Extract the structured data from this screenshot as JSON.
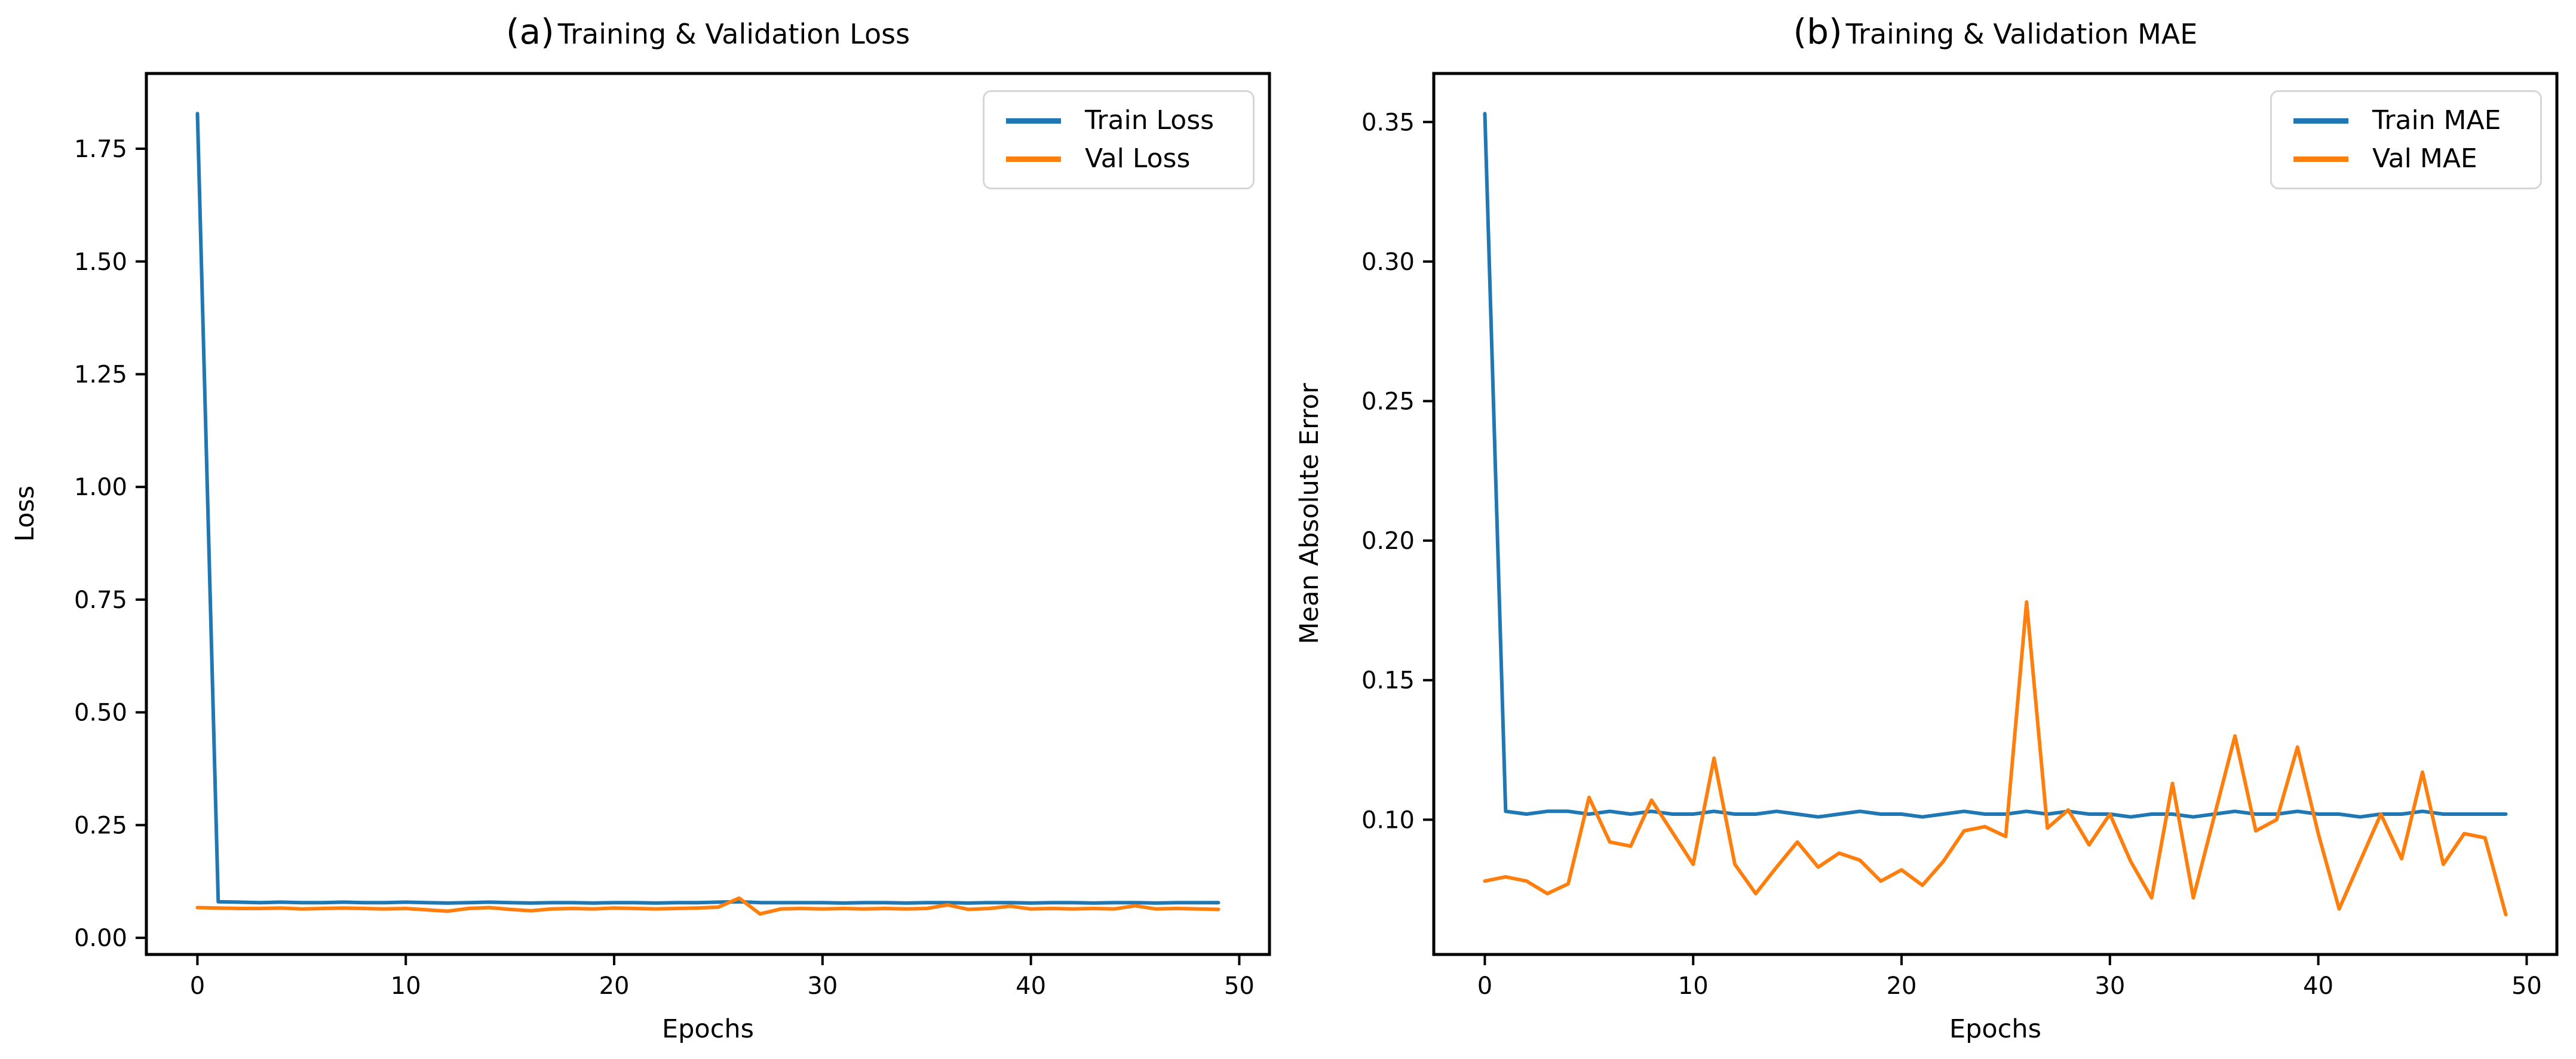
{
  "colors": {
    "train_line": "#1f77b4",
    "val_line": "#ff7f0e",
    "axis": "#000000",
    "legend_border": "#d6d6d6",
    "background": "#ffffff"
  },
  "chart_data": [
    {
      "type": "line",
      "panel": "a",
      "title_prefix": "(a)",
      "title": "Training & Validation Loss",
      "xlabel": "Epochs",
      "ylabel": "Loss",
      "grid": false,
      "xlim": [
        -2.45,
        51.45
      ],
      "ylim": [
        -0.037,
        1.917
      ],
      "xticks": {
        "values": [
          0,
          10,
          20,
          30,
          40,
          50
        ],
        "labels": [
          "0",
          "10",
          "20",
          "30",
          "40",
          "50"
        ]
      },
      "yticks": {
        "values": [
          0.0,
          0.25,
          0.5,
          0.75,
          1.0,
          1.25,
          1.5,
          1.75
        ],
        "labels": [
          "0.00",
          "0.25",
          "0.50",
          "0.75",
          "1.00",
          "1.25",
          "1.50",
          "1.75"
        ]
      },
      "legend": {
        "position": "upper right",
        "entries": [
          "Train Loss",
          "Val Loss"
        ]
      },
      "x": [
        0,
        1,
        2,
        3,
        4,
        5,
        6,
        7,
        8,
        9,
        10,
        11,
        12,
        13,
        14,
        15,
        16,
        17,
        18,
        19,
        20,
        21,
        22,
        23,
        24,
        25,
        26,
        27,
        28,
        29,
        30,
        31,
        32,
        33,
        34,
        35,
        36,
        37,
        38,
        39,
        40,
        41,
        42,
        43,
        44,
        45,
        46,
        47,
        48,
        49
      ],
      "series": [
        {
          "name": "Train Loss",
          "color": "#1f77b4",
          "values": [
            1.828,
            0.08,
            0.079,
            0.078,
            0.079,
            0.078,
            0.078,
            0.079,
            0.078,
            0.078,
            0.079,
            0.078,
            0.077,
            0.078,
            0.079,
            0.078,
            0.077,
            0.078,
            0.078,
            0.077,
            0.078,
            0.078,
            0.077,
            0.078,
            0.078,
            0.079,
            0.08,
            0.078,
            0.078,
            0.078,
            0.078,
            0.077,
            0.078,
            0.078,
            0.077,
            0.078,
            0.078,
            0.077,
            0.078,
            0.078,
            0.077,
            0.078,
            0.078,
            0.077,
            0.078,
            0.078,
            0.077,
            0.078,
            0.078,
            0.078
          ]
        },
        {
          "name": "Val Loss",
          "color": "#ff7f0e",
          "values": [
            0.067,
            0.066,
            0.065,
            0.065,
            0.066,
            0.064,
            0.065,
            0.066,
            0.065,
            0.064,
            0.065,
            0.062,
            0.059,
            0.065,
            0.067,
            0.063,
            0.06,
            0.064,
            0.065,
            0.064,
            0.066,
            0.065,
            0.064,
            0.065,
            0.066,
            0.068,
            0.088,
            0.053,
            0.064,
            0.065,
            0.064,
            0.065,
            0.064,
            0.065,
            0.064,
            0.065,
            0.073,
            0.063,
            0.065,
            0.07,
            0.064,
            0.065,
            0.064,
            0.065,
            0.064,
            0.071,
            0.064,
            0.065,
            0.064,
            0.063
          ]
        }
      ]
    },
    {
      "type": "line",
      "panel": "b",
      "title_prefix": "(b)",
      "title": "Training & Validation MAE",
      "xlabel": "Epochs",
      "ylabel": "Mean Absolute Error",
      "grid": false,
      "xlim": [
        -2.45,
        51.45
      ],
      "ylim": [
        0.0517,
        0.3674
      ],
      "xticks": {
        "values": [
          0,
          10,
          20,
          30,
          40,
          50
        ],
        "labels": [
          "0",
          "10",
          "20",
          "30",
          "40",
          "50"
        ]
      },
      "yticks": {
        "values": [
          0.1,
          0.15,
          0.2,
          0.25,
          0.3,
          0.35
        ],
        "labels": [
          "0.10",
          "0.15",
          "0.20",
          "0.25",
          "0.30",
          "0.35"
        ]
      },
      "legend": {
        "position": "upper right",
        "entries": [
          "Train MAE",
          "Val MAE"
        ]
      },
      "x": [
        0,
        1,
        2,
        3,
        4,
        5,
        6,
        7,
        8,
        9,
        10,
        11,
        12,
        13,
        14,
        15,
        16,
        17,
        18,
        19,
        20,
        21,
        22,
        23,
        24,
        25,
        26,
        27,
        28,
        29,
        30,
        31,
        32,
        33,
        34,
        35,
        36,
        37,
        38,
        39,
        40,
        41,
        42,
        43,
        44,
        45,
        46,
        47,
        48,
        49
      ],
      "series": [
        {
          "name": "Train MAE",
          "color": "#1f77b4",
          "values": [
            0.353,
            0.103,
            0.102,
            0.103,
            0.103,
            0.102,
            0.103,
            0.102,
            0.103,
            0.102,
            0.102,
            0.103,
            0.102,
            0.102,
            0.103,
            0.102,
            0.101,
            0.102,
            0.103,
            0.102,
            0.102,
            0.101,
            0.102,
            0.103,
            0.102,
            0.102,
            0.103,
            0.102,
            0.103,
            0.102,
            0.102,
            0.101,
            0.102,
            0.102,
            0.101,
            0.102,
            0.103,
            0.102,
            0.102,
            0.103,
            0.102,
            0.102,
            0.101,
            0.102,
            0.102,
            0.103,
            0.102,
            0.102,
            0.102,
            0.102
          ]
        },
        {
          "name": "Val MAE",
          "color": "#ff7f0e",
          "values": [
            0.078,
            0.0795,
            0.078,
            0.0735,
            0.077,
            0.108,
            0.092,
            0.0905,
            0.107,
            0.0955,
            0.084,
            0.122,
            0.084,
            0.0735,
            0.083,
            0.092,
            0.083,
            0.088,
            0.0855,
            0.078,
            0.082,
            0.0765,
            0.085,
            0.096,
            0.0975,
            0.094,
            0.178,
            0.097,
            0.1035,
            0.091,
            0.102,
            0.085,
            0.072,
            0.113,
            0.072,
            0.101,
            0.13,
            0.096,
            0.1,
            0.126,
            0.095,
            0.068,
            0.085,
            0.102,
            0.086,
            0.117,
            0.084,
            0.095,
            0.0935,
            0.066
          ]
        }
      ]
    }
  ]
}
